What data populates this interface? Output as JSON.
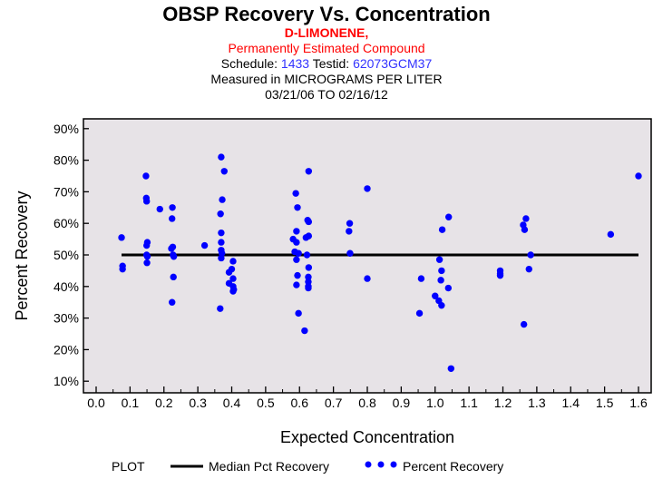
{
  "header": {
    "title": "OBSP Recovery Vs. Concentration",
    "compound": "D-LIMONENE,",
    "compound_note": "Permanently Estimated Compound",
    "schedule_label": "Schedule:",
    "schedule_value": "1433",
    "testid_label": "Testid:",
    "testid_value": "62073GCM37",
    "units_line": "Measured in  MICROGRAMS PER LITER",
    "date_range": "03/21/06 TO 02/16/12"
  },
  "legend": {
    "title": "PLOT",
    "median_label": "Median Pct Recovery",
    "points_label": "Percent Recovery"
  },
  "colors": {
    "plot_bg": "#e7e3e7",
    "points": "#0000ff",
    "median": "#000000",
    "compound": "#ff0000",
    "ids": "#3333ff"
  },
  "chart_data": {
    "type": "scatter",
    "title": "OBSP Recovery Vs. Concentration",
    "xlabel": "Expected Concentration",
    "ylabel": "Percent Recovery",
    "xlim": [
      -0.05,
      1.64
    ],
    "ylim": [
      7,
      93
    ],
    "xticks": [
      "0.0",
      "0.1",
      "0.2",
      "0.3",
      "0.4",
      "0.5",
      "0.6",
      "0.7",
      "0.8",
      "0.9",
      "1.0",
      "1.1",
      "1.2",
      "1.3",
      "1.4",
      "1.5",
      "1.6"
    ],
    "yticks": [
      "10%",
      "20%",
      "30%",
      "40%",
      "50%",
      "60%",
      "70%",
      "80%",
      "90%"
    ],
    "median": {
      "value": 50,
      "x_range": [
        0.075,
        1.6
      ]
    },
    "points": [
      [
        0.075,
        55.5
      ],
      [
        0.078,
        46.5
      ],
      [
        0.078,
        45.5
      ],
      [
        0.147,
        75
      ],
      [
        0.148,
        68
      ],
      [
        0.149,
        67
      ],
      [
        0.151,
        54
      ],
      [
        0.149,
        53
      ],
      [
        0.149,
        50
      ],
      [
        0.151,
        49.5
      ],
      [
        0.15,
        47.5
      ],
      [
        0.188,
        64.5
      ],
      [
        0.225,
        65
      ],
      [
        0.224,
        61.5
      ],
      [
        0.226,
        52.5
      ],
      [
        0.222,
        52
      ],
      [
        0.227,
        50
      ],
      [
        0.229,
        49.5
      ],
      [
        0.228,
        43
      ],
      [
        0.224,
        35
      ],
      [
        0.32,
        53
      ],
      [
        0.369,
        81
      ],
      [
        0.367,
        63
      ],
      [
        0.369,
        57
      ],
      [
        0.369,
        54
      ],
      [
        0.369,
        51.5
      ],
      [
        0.371,
        50.5
      ],
      [
        0.369,
        49
      ],
      [
        0.366,
        33
      ],
      [
        0.378,
        76.5
      ],
      [
        0.372,
        67.5
      ],
      [
        0.404,
        48
      ],
      [
        0.4,
        45.5
      ],
      [
        0.392,
        44.5
      ],
      [
        0.404,
        42.5
      ],
      [
        0.392,
        41
      ],
      [
        0.404,
        40
      ],
      [
        0.406,
        39
      ],
      [
        0.404,
        38.5
      ],
      [
        0.589,
        69.5
      ],
      [
        0.591,
        57.5
      ],
      [
        0.581,
        55
      ],
      [
        0.591,
        54
      ],
      [
        0.586,
        51
      ],
      [
        0.597,
        50.5
      ],
      [
        0.591,
        48.5
      ],
      [
        0.594,
        43.5
      ],
      [
        0.591,
        40.5
      ],
      [
        0.594,
        65
      ],
      [
        0.597,
        31.5
      ],
      [
        0.615,
        26
      ],
      [
        0.627,
        76.5
      ],
      [
        0.624,
        61
      ],
      [
        0.627,
        60.5
      ],
      [
        0.627,
        56
      ],
      [
        0.619,
        55.5
      ],
      [
        0.622,
        50
      ],
      [
        0.627,
        46
      ],
      [
        0.626,
        43
      ],
      [
        0.626,
        41.5
      ],
      [
        0.626,
        40
      ],
      [
        0.626,
        39.5
      ],
      [
        0.748,
        60
      ],
      [
        0.746,
        57.5
      ],
      [
        0.749,
        50.5
      ],
      [
        0.8,
        71
      ],
      [
        0.8,
        42.5
      ],
      [
        0.954,
        31.5
      ],
      [
        0.959,
        42.5
      ],
      [
        1.04,
        62
      ],
      [
        1.021,
        58
      ],
      [
        1.013,
        48.5
      ],
      [
        1.019,
        45
      ],
      [
        1.017,
        42
      ],
      [
        1.039,
        39.5
      ],
      [
        1.0,
        37
      ],
      [
        1.011,
        35.5
      ],
      [
        1.019,
        34
      ],
      [
        1.047,
        14
      ],
      [
        1.192,
        45
      ],
      [
        1.192,
        44
      ],
      [
        1.192,
        43.5
      ],
      [
        1.268,
        61.5
      ],
      [
        1.26,
        59.5
      ],
      [
        1.264,
        58
      ],
      [
        1.262,
        28
      ],
      [
        1.282,
        50
      ],
      [
        1.277,
        45.5
      ],
      [
        1.518,
        56.5
      ],
      [
        1.6,
        75
      ]
    ]
  }
}
